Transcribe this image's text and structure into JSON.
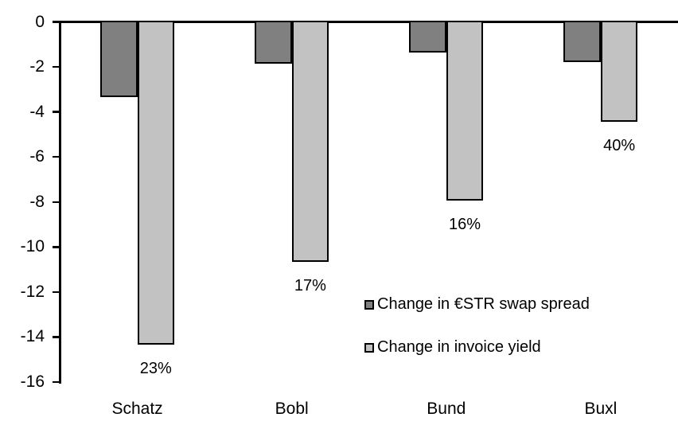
{
  "chart_data": {
    "type": "bar",
    "orientation": "vertical",
    "title": "",
    "xlabel": "",
    "ylabel": "",
    "categories": [
      "Schatz",
      "Bobl",
      "Bund",
      "Buxl"
    ],
    "series": [
      {
        "name": "Change in €STR swap spread",
        "color": "#808080",
        "border_color": "#000000",
        "values": [
          -3.3,
          -1.8,
          -1.3,
          -1.75
        ]
      },
      {
        "name": "Change in invoice yield",
        "color": "#c2c2c2",
        "border_color": "#000000",
        "values": [
          -14.3,
          -10.6,
          -7.9,
          -4.4
        ],
        "data_labels": [
          "23%",
          "17%",
          "16%",
          "40%"
        ]
      }
    ],
    "ylim": [
      -16,
      0
    ],
    "yticks": [
      {
        "value": 0,
        "label": "0"
      },
      {
        "value": -2,
        "label": "-2"
      },
      {
        "value": -4,
        "label": "-4"
      },
      {
        "value": -6,
        "label": "-6"
      },
      {
        "value": -8,
        "label": "-8"
      },
      {
        "value": -10,
        "label": "-10"
      },
      {
        "value": -12,
        "label": "-12"
      },
      {
        "value": -14,
        "label": "-14"
      },
      {
        "value": -16,
        "label": "-16"
      }
    ],
    "grid": false,
    "legend": {
      "position": "inside-lower-right",
      "entries": [
        "Change in €STR swap spread",
        "Change in invoice yield"
      ]
    },
    "background_color": "#ffffff",
    "axis_color": "#000000",
    "text_color": "#000000"
  }
}
